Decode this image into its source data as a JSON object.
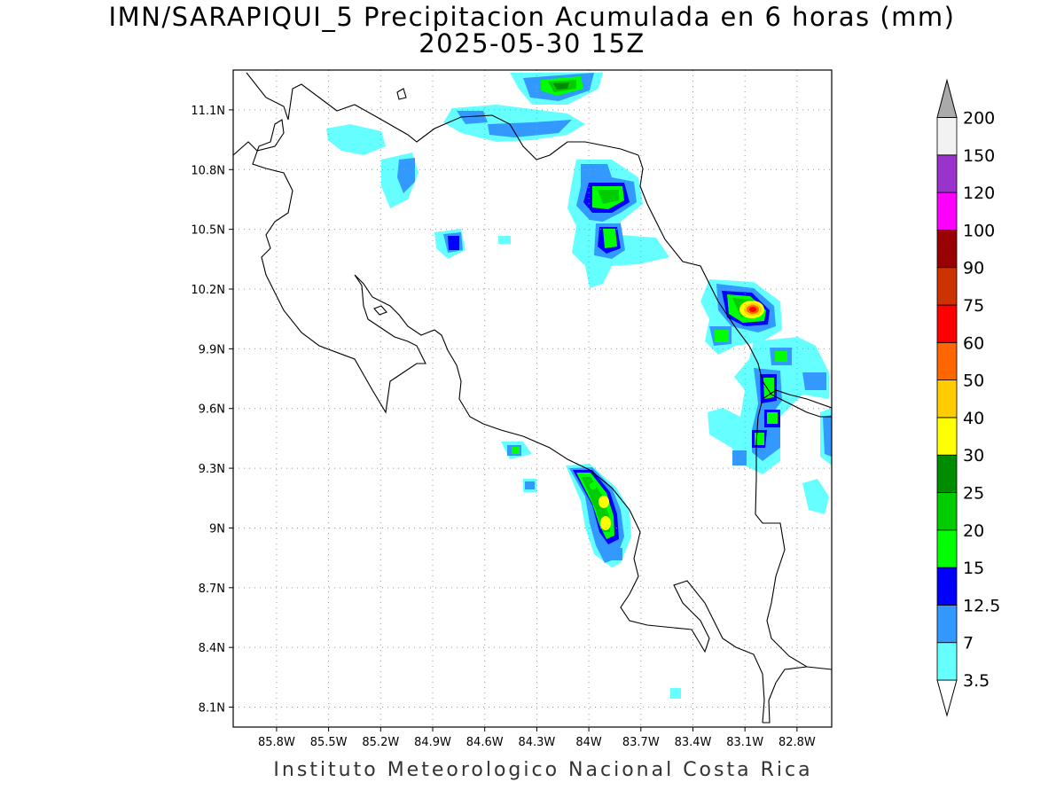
{
  "title_line1": "IMN/SARAPIQUI_5 Precipitacion Acumulada en 6 horas (mm)",
  "title_line2": "2025-05-30 15Z",
  "footer": "Instituto Meteorologico Nacional Costa Rica",
  "map": {
    "lon_range": [
      -86.05,
      -82.6
    ],
    "lat_range": [
      8.0,
      11.3
    ],
    "x_ticks": [
      "85.8W",
      "85.5W",
      "85.2W",
      "84.9W",
      "84.6W",
      "84.3W",
      "84W",
      "83.7W",
      "83.4W",
      "83.1W",
      "82.8W"
    ],
    "x_tick_values": [
      -85.8,
      -85.5,
      -85.2,
      -84.9,
      -84.6,
      -84.3,
      -84.0,
      -83.7,
      -83.4,
      -83.1,
      -82.8
    ],
    "y_ticks": [
      "11.1N",
      "10.8N",
      "10.5N",
      "10.2N",
      "9.9N",
      "9.6N",
      "9.3N",
      "9N",
      "8.7N",
      "8.4N",
      "8.1N"
    ],
    "y_tick_values": [
      11.1,
      10.8,
      10.5,
      10.2,
      9.9,
      9.6,
      9.3,
      9.0,
      8.7,
      8.4,
      8.1
    ],
    "grid": "dotted",
    "colorbar": {
      "levels": [
        "3.5",
        "7",
        "12.5",
        "15",
        "20",
        "25",
        "30",
        "40",
        "50",
        "60",
        "75",
        "90",
        "100",
        "120",
        "150",
        "200"
      ],
      "colors": [
        "#ffffff",
        "#66ffff",
        "#3399ff",
        "#0000ff",
        "#00ff00",
        "#00cc00",
        "#008c00",
        "#ffff00",
        "#ffcc00",
        "#ff6600",
        "#ff0000",
        "#cc3300",
        "#990000",
        "#ff00ff",
        "#9933cc",
        "#f2f2f2"
      ],
      "over_color": "#aaaaaa"
    },
    "precip_cells": [
      {
        "name": "cell-upper-nicaragua",
        "lon": -84.1,
        "lat": 11.22,
        "rx": 44,
        "ry": 18,
        "max": "25"
      },
      {
        "name": "cell-san-carlos-north",
        "lon": -83.86,
        "lat": 10.67,
        "rx": 42,
        "ry": 40,
        "max": "25"
      },
      {
        "name": "cell-sarapiqui",
        "lon": -83.83,
        "lat": 10.45,
        "rx": 50,
        "ry": 38,
        "max": "20"
      },
      {
        "name": "cell-upala",
        "lon": -84.7,
        "lat": 10.44,
        "rx": 16,
        "ry": 16,
        "max": "15"
      },
      {
        "name": "cell-limon-north",
        "lon": -82.93,
        "lat": 10.1,
        "rx": 34,
        "ry": 24,
        "max": "75"
      },
      {
        "name": "cell-limon-central",
        "lon": -82.85,
        "lat": 9.7,
        "rx": 30,
        "ry": 60,
        "max": "25"
      },
      {
        "name": "cell-limon-south",
        "lon": -82.88,
        "lat": 9.48,
        "rx": 28,
        "ry": 40,
        "max": "25"
      },
      {
        "name": "cell-osa",
        "lon": -83.92,
        "lat": 9.1,
        "rx": 28,
        "ry": 60,
        "max": "40"
      }
    ]
  }
}
